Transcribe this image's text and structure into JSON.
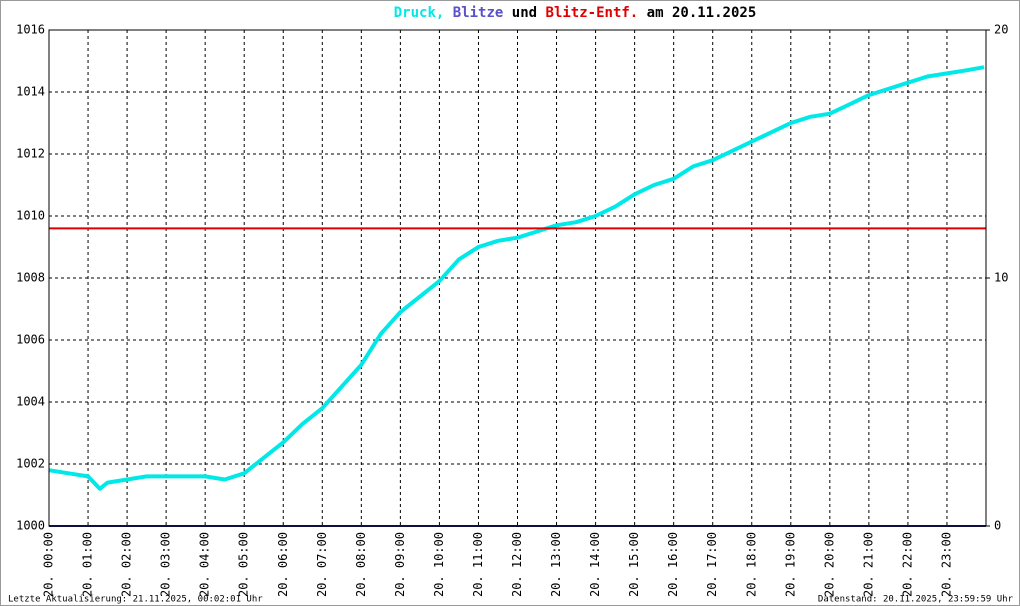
{
  "chart_data": {
    "type": "line",
    "title_separator": ",",
    "title_joiner": "und",
    "title_date": "am 20.11.2025",
    "title_color": "#000000",
    "footer_left": "Letzte Aktualisierung: 21.11.2025, 00:02:01 Uhr",
    "footer_right": "Datenstand: 20.11.2025, 23:59:59 Uhr",
    "xlim": [
      0,
      24
    ],
    "xticks": [
      {
        "value": 0,
        "label": "20. 00:00"
      },
      {
        "value": 1,
        "label": "20. 01:00"
      },
      {
        "value": 2,
        "label": "20. 02:00"
      },
      {
        "value": 3,
        "label": "20. 03:00"
      },
      {
        "value": 4,
        "label": "20. 04:00"
      },
      {
        "value": 5,
        "label": "20. 05:00"
      },
      {
        "value": 6,
        "label": "20. 06:00"
      },
      {
        "value": 7,
        "label": "20. 07:00"
      },
      {
        "value": 8,
        "label": "20. 08:00"
      },
      {
        "value": 9,
        "label": "20. 09:00"
      },
      {
        "value": 10,
        "label": "20. 10:00"
      },
      {
        "value": 11,
        "label": "20. 11:00"
      },
      {
        "value": 12,
        "label": "20. 12:00"
      },
      {
        "value": 13,
        "label": "20. 13:00"
      },
      {
        "value": 14,
        "label": "20. 14:00"
      },
      {
        "value": 15,
        "label": "20. 15:00"
      },
      {
        "value": 16,
        "label": "20. 16:00"
      },
      {
        "value": 17,
        "label": "20. 17:00"
      },
      {
        "value": 18,
        "label": "20. 18:00"
      },
      {
        "value": 19,
        "label": "20. 19:00"
      },
      {
        "value": 20,
        "label": "20. 20:00"
      },
      {
        "value": 21,
        "label": "20. 21:00"
      },
      {
        "value": 22,
        "label": "20. 22:00"
      },
      {
        "value": 23,
        "label": "20. 23:00"
      }
    ],
    "ylim": [
      1000,
      1016
    ],
    "yticks": [
      1000,
      1002,
      1004,
      1006,
      1008,
      1010,
      1012,
      1014,
      1016
    ],
    "y2lim": [
      0,
      20
    ],
    "y2ticks": [
      0,
      10,
      20
    ],
    "grid": true,
    "series": [
      {
        "name": "Druck",
        "color": "#00e8e8",
        "x": [
          0,
          0.5,
          1,
          1.3,
          1.5,
          2,
          2.5,
          3,
          3.5,
          4,
          4.5,
          5,
          5.5,
          6,
          6.5,
          7,
          7.5,
          8,
          8.5,
          9,
          9.5,
          10,
          10.5,
          11,
          11.5,
          12,
          12.5,
          13,
          13.5,
          14,
          14.5,
          15,
          15.5,
          16,
          16.5,
          17,
          17.5,
          18,
          18.5,
          19,
          19.5,
          20,
          20.5,
          21,
          21.5,
          22,
          22.5,
          23,
          23.5,
          23.95
        ],
        "values": [
          1001.8,
          1001.7,
          1001.6,
          1001.2,
          1001.4,
          1001.5,
          1001.6,
          1001.6,
          1001.6,
          1001.6,
          1001.5,
          1001.7,
          1002.2,
          1002.7,
          1003.3,
          1003.8,
          1004.5,
          1005.2,
          1006.2,
          1006.9,
          1007.4,
          1007.9,
          1008.6,
          1009.0,
          1009.2,
          1009.3,
          1009.5,
          1009.7,
          1009.8,
          1010.0,
          1010.3,
          1010.7,
          1011.0,
          1011.2,
          1011.6,
          1011.8,
          1012.1,
          1012.4,
          1012.7,
          1013.0,
          1013.2,
          1013.3,
          1013.6,
          1013.9,
          1014.1,
          1014.3,
          1014.5,
          1014.6,
          1014.7,
          1014.8
        ]
      },
      {
        "name": "Blitze",
        "color": "#5a50c8",
        "line_color": "#202080",
        "axis": "y2",
        "x": [
          0,
          24
        ],
        "values": [
          0,
          0
        ]
      },
      {
        "name": "Blitz-Entf.",
        "color": "#e00000",
        "axis": "y2",
        "x": [
          0,
          24
        ],
        "values": [
          12,
          12
        ]
      }
    ]
  }
}
